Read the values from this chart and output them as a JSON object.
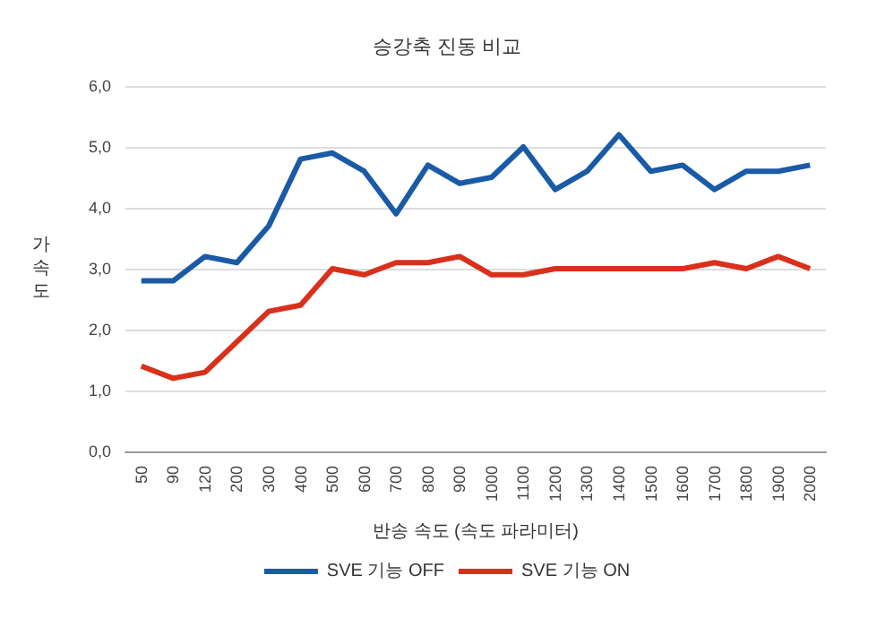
{
  "chart_data": {
    "type": "line",
    "title": "승강축 진동 비교",
    "xlabel": "반송 속도 (속도 파라미터)",
    "ylabel": "가속도",
    "categories": [
      "50",
      "90",
      "120",
      "200",
      "300",
      "400",
      "500",
      "600",
      "700",
      "800",
      "900",
      "1000",
      "1100",
      "1200",
      "1300",
      "1400",
      "1500",
      "1600",
      "1700",
      "1800",
      "1900",
      "2000"
    ],
    "series": [
      {
        "name": "SVE 기능 OFF",
        "color": "#1a5aa6",
        "values": [
          2.8,
          2.8,
          3.2,
          3.1,
          3.7,
          4.8,
          4.9,
          4.6,
          3.9,
          4.7,
          4.4,
          4.5,
          5.0,
          4.3,
          4.6,
          5.2,
          4.6,
          4.7,
          4.3,
          4.6,
          4.6,
          4.7
        ]
      },
      {
        "name": "SVE 기능 ON",
        "color": "#d9301c",
        "values": [
          1.4,
          1.2,
          1.3,
          1.8,
          2.3,
          2.4,
          3.0,
          2.9,
          3.1,
          3.1,
          3.2,
          2.9,
          2.9,
          3.0,
          3.0,
          3.0,
          3.0,
          3.0,
          3.1,
          3.0,
          3.2,
          3.0
        ]
      }
    ],
    "ylim": [
      0,
      6
    ],
    "yticks": [
      {
        "value": 0,
        "label": "0,0"
      },
      {
        "value": 1,
        "label": "1,0"
      },
      {
        "value": 2,
        "label": "2,0"
      },
      {
        "value": 3,
        "label": "3,0"
      },
      {
        "value": 4,
        "label": "4,0"
      },
      {
        "value": 5,
        "label": "5,0"
      },
      {
        "value": 6,
        "label": "6,0"
      }
    ],
    "grid": "y",
    "legend": "bottom",
    "marker": "none",
    "line_style": "solid"
  }
}
